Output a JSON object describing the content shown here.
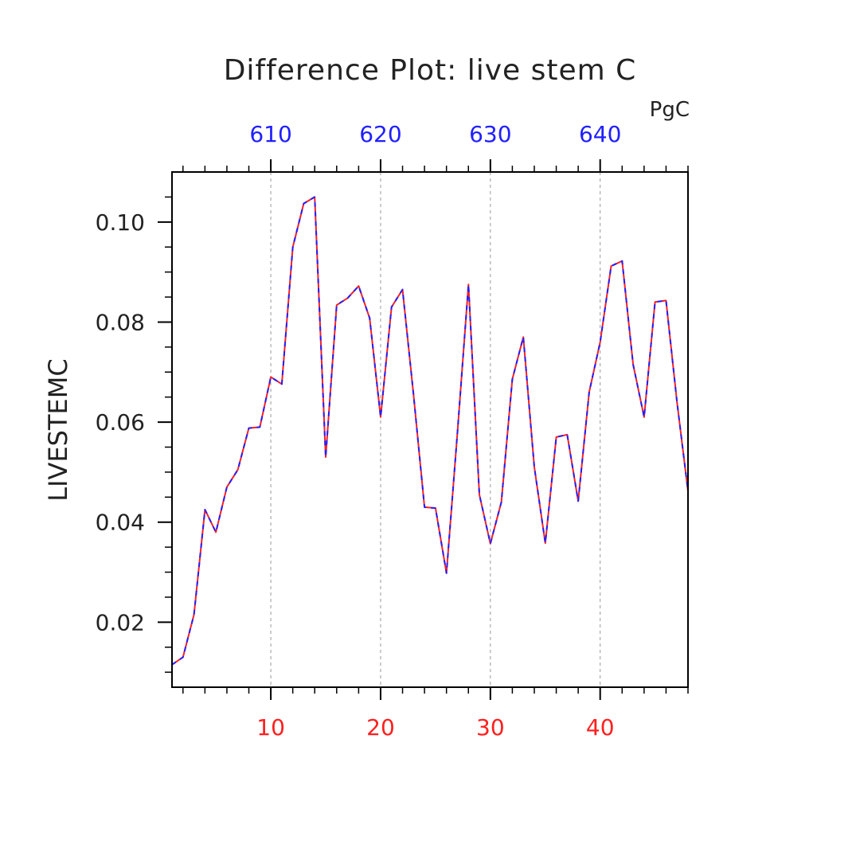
{
  "chart_data": {
    "type": "line",
    "title": "Difference Plot: live stem C",
    "ylabel": "LIVESTEMC",
    "xlabel": "",
    "units": "PgC",
    "xlim": [
      1,
      48
    ],
    "ylim": [
      0.007,
      0.11
    ],
    "x_ticks_bottom": [
      10,
      20,
      30,
      40
    ],
    "x_ticks_top": [
      610,
      620,
      630,
      640
    ],
    "y_ticks": [
      0.02,
      0.04,
      0.06,
      0.08,
      0.1
    ],
    "y_tick_labels": [
      "0.02",
      "0.04",
      "0.06",
      "0.08",
      "0.10"
    ],
    "grid": "vertical dashed at major x ticks",
    "bottom_axis_color": "#ff2020",
    "top_axis_color": "#2020ff",
    "series": [
      {
        "color": "#ff2020",
        "dash": "solid",
        "x": [
          1,
          2,
          3,
          4,
          5,
          6,
          7,
          8,
          9,
          10,
          11,
          12,
          13,
          14,
          15,
          16,
          17,
          18,
          19,
          20,
          21,
          22,
          23,
          24,
          25,
          26,
          27,
          28,
          29,
          30,
          31,
          32,
          33,
          34,
          35,
          36,
          37,
          38,
          39,
          40,
          41,
          42,
          43,
          44,
          45,
          46,
          47,
          48
        ],
        "values": [
          0.0115,
          0.013,
          0.0215,
          0.0425,
          0.038,
          0.047,
          0.0505,
          0.0588,
          0.059,
          0.069,
          0.0676,
          0.095,
          0.1037,
          0.105,
          0.053,
          0.0834,
          0.0848,
          0.0872,
          0.0808,
          0.061,
          0.083,
          0.0865,
          0.0655,
          0.043,
          0.0428,
          0.0298,
          0.058,
          0.0875,
          0.0455,
          0.0357,
          0.044,
          0.0686,
          0.077,
          0.051,
          0.0358,
          0.057,
          0.0575,
          0.0442,
          0.066,
          0.076,
          0.0912,
          0.0922,
          0.0715,
          0.061,
          0.084,
          0.0843,
          0.064,
          0.0462
        ]
      },
      {
        "color": "#2020ff",
        "dash": "dashed",
        "x": [
          1,
          2,
          3,
          4,
          5,
          6,
          7,
          8,
          9,
          10,
          11,
          12,
          13,
          14,
          15,
          16,
          17,
          18,
          19,
          20,
          21,
          22,
          23,
          24,
          25,
          26,
          27,
          28,
          29,
          30,
          31,
          32,
          33,
          34,
          35,
          36,
          37,
          38,
          39,
          40,
          41,
          42,
          43,
          44,
          45,
          46,
          47,
          48
        ],
        "values": [
          0.0115,
          0.013,
          0.0215,
          0.0425,
          0.038,
          0.047,
          0.0505,
          0.0588,
          0.059,
          0.069,
          0.0676,
          0.095,
          0.1037,
          0.105,
          0.053,
          0.0834,
          0.0848,
          0.0872,
          0.0808,
          0.061,
          0.083,
          0.0865,
          0.0655,
          0.043,
          0.0428,
          0.0298,
          0.058,
          0.0875,
          0.0455,
          0.0357,
          0.044,
          0.0686,
          0.077,
          0.051,
          0.0358,
          0.057,
          0.0575,
          0.0442,
          0.066,
          0.076,
          0.0912,
          0.0922,
          0.0715,
          0.061,
          0.084,
          0.0843,
          0.064,
          0.0462
        ]
      }
    ]
  }
}
